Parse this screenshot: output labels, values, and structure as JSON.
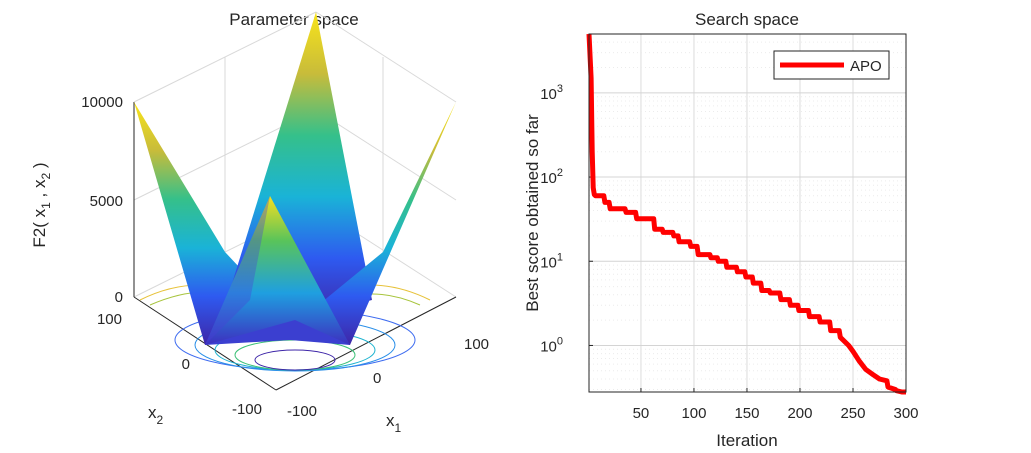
{
  "chart_data": [
    {
      "type": "surface3d",
      "title": "Parameter space",
      "function": "F2",
      "zlabel": "F2( x",
      "zlabel_sub1": "1",
      "zlabel_sep": " , x",
      "zlabel_sub2": "2",
      "zlabel_end": " )",
      "xlabel": "x",
      "xlabel_sub": "1",
      "ylabel": "x",
      "ylabel_sub": "2",
      "xlim": [
        -100,
        100
      ],
      "ylim": [
        -100,
        100
      ],
      "zlim": [
        0,
        10000
      ],
      "z_ticks": [
        "0",
        "5000",
        "10000"
      ],
      "x_ticks": [
        "-100",
        "0",
        "100"
      ],
      "y_ticks": [
        "-100",
        "0",
        "100"
      ],
      "colormap": [
        "#3e26a8",
        "#2e87f7",
        "#1ab3d7",
        "#2ac394",
        "#96c33a",
        "#f8ba3d",
        "#f9fb15"
      ],
      "grid": true
    },
    {
      "type": "line",
      "title": "Search space",
      "xlabel": "Iteration",
      "ylabel": "Best score obtained so far",
      "yscale": "log",
      "xlim": [
        1,
        300
      ],
      "ylim": [
        0.28,
        5000
      ],
      "x_ticks": [
        "50",
        "100",
        "150",
        "200",
        "250",
        "300"
      ],
      "y_tick_base": "10",
      "y_tick_exponents": [
        "0",
        "1",
        "2",
        "3"
      ],
      "legend_location": "top-right",
      "series": [
        {
          "name": "APO",
          "color": "#ff0000",
          "x": [
            1,
            3,
            4,
            5,
            6,
            7,
            15,
            16,
            20,
            21,
            35,
            36,
            45,
            46,
            62,
            63,
            70,
            71,
            80,
            81,
            85,
            86,
            96,
            97,
            103,
            104,
            115,
            116,
            122,
            123,
            130,
            131,
            140,
            141,
            148,
            149,
            155,
            156,
            163,
            164,
            171,
            172,
            181,
            182,
            190,
            191,
            198,
            199,
            208,
            209,
            218,
            219,
            228,
            229,
            237,
            238,
            246,
            250,
            256,
            262,
            269,
            275,
            282,
            283,
            290,
            291,
            296,
            300
          ],
          "y": [
            5000,
            1500,
            200,
            75,
            62,
            60,
            60,
            50,
            50,
            42,
            42,
            38,
            38,
            32,
            32,
            24,
            24,
            22,
            22,
            20,
            20,
            17,
            17,
            15,
            15,
            12,
            12,
            11,
            11,
            10,
            10,
            8.5,
            8.5,
            7.5,
            7.5,
            6.5,
            6.5,
            5.5,
            5.5,
            4.5,
            4.5,
            4.2,
            4.2,
            3.5,
            3.5,
            3.0,
            3.0,
            2.6,
            2.6,
            2.2,
            2.2,
            1.9,
            1.9,
            1.5,
            1.5,
            1.25,
            1.0,
            0.85,
            0.65,
            0.52,
            0.45,
            0.4,
            0.38,
            0.32,
            0.3,
            0.29,
            0.28,
            0.28
          ]
        }
      ]
    }
  ]
}
